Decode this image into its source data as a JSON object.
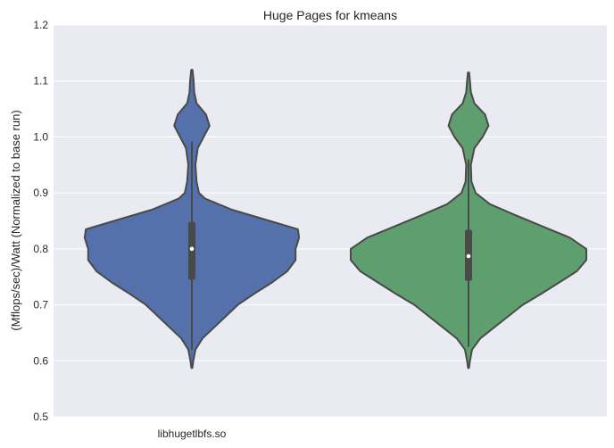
{
  "chart_data": {
    "type": "violin",
    "title": "Huge Pages for kmeans",
    "xlabel": "",
    "ylabel": "(Mflops/sec)/Watt (Normalized to base run)",
    "ylim": [
      0.5,
      1.2
    ],
    "yticks": [
      0.5,
      0.6,
      0.7,
      0.8,
      0.9,
      1.0,
      1.1,
      1.2
    ],
    "ytick_labels": [
      "0.5",
      "0.6",
      "0.7",
      "0.8",
      "0.9",
      "1.0",
      "1.1",
      "1.2"
    ],
    "grid": true,
    "legend": "none",
    "categories": [
      "libhugetlbfs.so",
      ""
    ],
    "series": [
      {
        "color": "#5471ab",
        "median": 0.8,
        "q1": 0.745,
        "q3": 0.848,
        "whisker_low": 0.62,
        "whisker_high": 0.992,
        "density": [
          [
            0.587,
            0.004
          ],
          [
            0.6,
            0.012
          ],
          [
            0.62,
            0.03
          ],
          [
            0.64,
            0.09
          ],
          [
            0.66,
            0.19
          ],
          [
            0.68,
            0.29
          ],
          [
            0.7,
            0.39
          ],
          [
            0.72,
            0.53
          ],
          [
            0.74,
            0.68
          ],
          [
            0.76,
            0.81
          ],
          [
            0.78,
            0.88
          ],
          [
            0.8,
            0.88
          ],
          [
            0.82,
            0.91
          ],
          [
            0.835,
            0.9
          ],
          [
            0.85,
            0.66
          ],
          [
            0.87,
            0.34
          ],
          [
            0.89,
            0.11
          ],
          [
            0.9,
            0.06
          ],
          [
            0.92,
            0.04
          ],
          [
            0.95,
            0.03
          ],
          [
            0.98,
            0.05
          ],
          [
            1.0,
            0.1
          ],
          [
            1.02,
            0.15
          ],
          [
            1.04,
            0.12
          ],
          [
            1.06,
            0.04
          ],
          [
            1.08,
            0.02
          ],
          [
            1.1,
            0.015
          ],
          [
            1.12,
            0.005
          ]
        ]
      },
      {
        "color": "#5f9e6e",
        "median": 0.787,
        "q1": 0.743,
        "q3": 0.834,
        "whisker_low": 0.625,
        "whisker_high": 0.96,
        "density": [
          [
            0.587,
            0.004
          ],
          [
            0.6,
            0.012
          ],
          [
            0.62,
            0.03
          ],
          [
            0.64,
            0.1
          ],
          [
            0.66,
            0.22
          ],
          [
            0.68,
            0.34
          ],
          [
            0.7,
            0.46
          ],
          [
            0.72,
            0.62
          ],
          [
            0.74,
            0.77
          ],
          [
            0.76,
            0.92
          ],
          [
            0.78,
            1.0
          ],
          [
            0.8,
            1.0
          ],
          [
            0.82,
            0.86
          ],
          [
            0.84,
            0.63
          ],
          [
            0.86,
            0.4
          ],
          [
            0.88,
            0.18
          ],
          [
            0.9,
            0.06
          ],
          [
            0.92,
            0.025
          ],
          [
            0.95,
            0.02
          ],
          [
            0.98,
            0.05
          ],
          [
            1.0,
            0.12
          ],
          [
            1.02,
            0.17
          ],
          [
            1.04,
            0.14
          ],
          [
            1.06,
            0.05
          ],
          [
            1.08,
            0.02
          ],
          [
            1.1,
            0.012
          ],
          [
            1.115,
            0.005
          ]
        ]
      }
    ]
  }
}
